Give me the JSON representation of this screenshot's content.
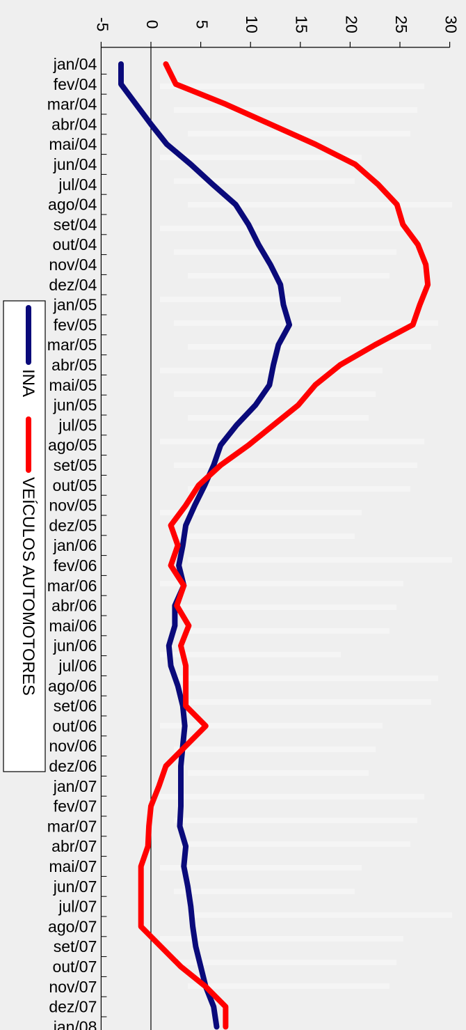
{
  "chart_data": {
    "type": "line",
    "title": "",
    "xlabel": "",
    "ylabel": "",
    "orientation": "rotated-90-clockwise",
    "categories": [
      "jan/04",
      "fev/04",
      "mar/04",
      "abr/04",
      "mai/04",
      "jun/04",
      "jul/04",
      "ago/04",
      "set/04",
      "out/04",
      "nov/04",
      "dez/04",
      "jan/05",
      "fev/05",
      "mar/05",
      "abr/05",
      "mai/05",
      "jun/05",
      "jul/05",
      "ago/05",
      "set/05",
      "out/05",
      "nov/05",
      "dez/05",
      "jan/06",
      "fev/06",
      "mar/06",
      "abr/06",
      "mai/06",
      "jun/06",
      "jul/06",
      "ago/06",
      "set/06",
      "out/06",
      "nov/06",
      "dez/06",
      "jan/07",
      "fev/07",
      "mar/07",
      "abr/07",
      "mai/07",
      "jun/07",
      "jul/07",
      "ago/07",
      "set/07",
      "out/07",
      "nov/07",
      "dez/07",
      "jan/08"
    ],
    "ylim": [
      -5,
      30
    ],
    "yticks": [
      "-5",
      "0",
      "5",
      "10",
      "15",
      "20",
      "25",
      "30"
    ],
    "grid": false,
    "legend_position": "left-center",
    "series": [
      {
        "name": "INA",
        "color": "#0a0a7a",
        "values": [
          -3.0,
          -3.0,
          -1.5,
          0.0,
          1.6,
          4.0,
          6.2,
          8.5,
          9.8,
          10.8,
          12.0,
          13.0,
          13.3,
          13.9,
          12.8,
          12.3,
          11.9,
          10.5,
          8.6,
          7.0,
          6.3,
          5.4,
          4.4,
          3.5,
          3.2,
          2.8,
          3.3,
          2.4,
          2.4,
          1.8,
          2.0,
          2.7,
          3.2,
          3.4,
          3.2,
          3.0,
          3.0,
          3.0,
          2.9,
          3.5,
          3.3,
          3.7,
          4.0,
          4.2,
          4.5,
          5.0,
          5.5,
          6.3,
          6.6
        ],
        "line_width": 8
      },
      {
        "name": "VEÍCULOS AUTOMOTORES",
        "color": "#ff0000",
        "values": [
          1.5,
          2.5,
          7.5,
          12.0,
          16.5,
          20.5,
          22.8,
          24.7,
          25.3,
          26.8,
          27.6,
          27.8,
          27.0,
          26.3,
          22.5,
          19.0,
          16.5,
          14.8,
          12.3,
          9.8,
          7.0,
          4.8,
          3.5,
          2.0,
          2.7,
          2.0,
          3.3,
          2.6,
          3.8,
          3.0,
          3.5,
          3.5,
          3.5,
          5.5,
          3.5,
          1.5,
          0.8,
          0.0,
          -0.2,
          -0.3,
          -1.0,
          -1.0,
          -1.0,
          -1.0,
          1.0,
          3.0,
          5.5,
          7.5,
          7.5
        ],
        "line_width": 8
      }
    ]
  }
}
